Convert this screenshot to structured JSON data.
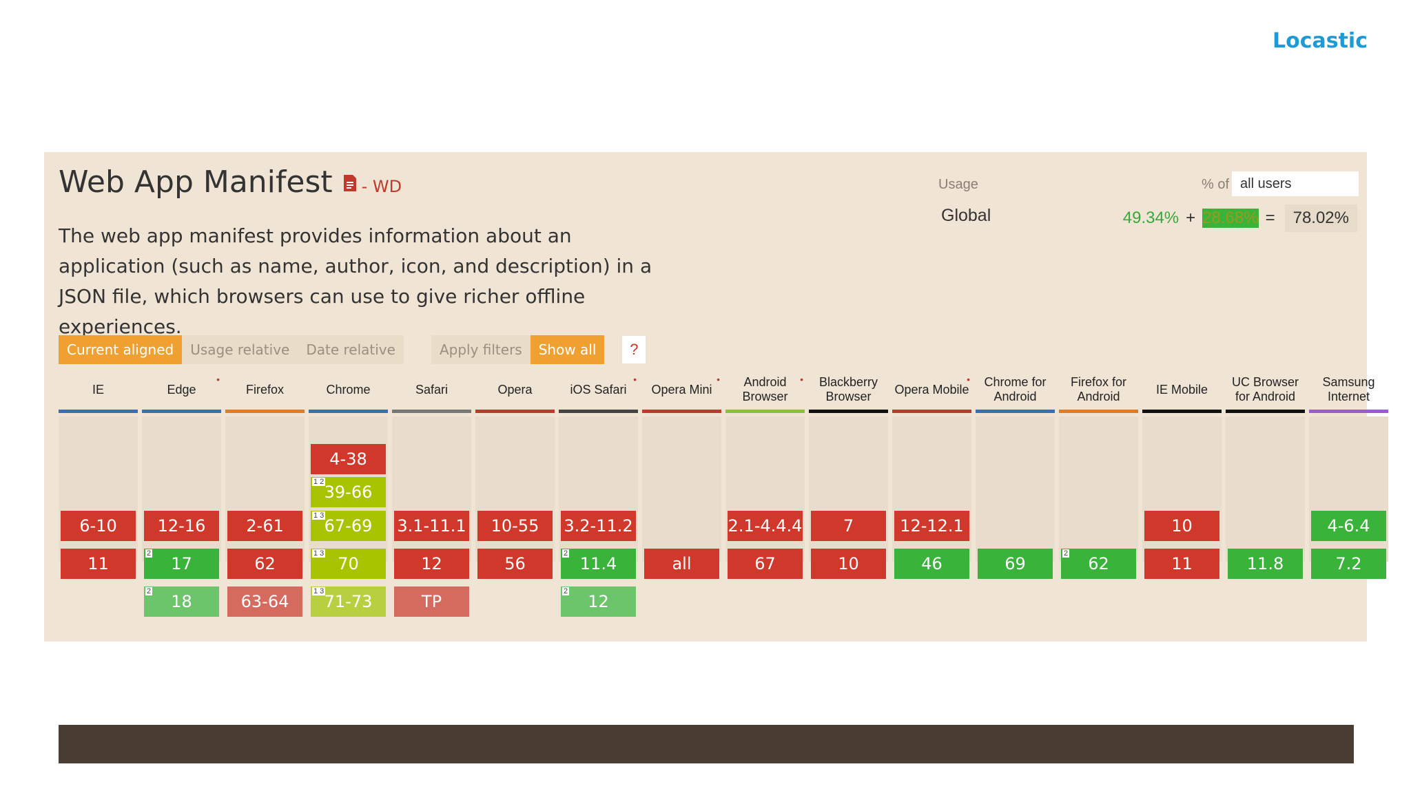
{
  "brand": "Locastic",
  "header": {
    "title": "Web App Manifest",
    "doc_icon": "document-icon",
    "status": "- WD",
    "description": "The web app manifest provides information about an application (such as name, author, icon, and description) in a JSON file, which browsers can use to give richer offline experiences."
  },
  "usage": {
    "label": "Usage",
    "pct_of_label": "% of",
    "select_value": "all users",
    "region": "Global",
    "supported": "49.34%",
    "plus": "+",
    "partial": "28.68%",
    "equals": "=",
    "total": "78.02%"
  },
  "filters": {
    "current_aligned": "Current aligned",
    "usage_relative": "Usage relative",
    "date_relative": "Date relative",
    "apply_filters": "Apply filters",
    "show_all": "Show all",
    "help": "?"
  },
  "colors": {
    "supported": "#39b339",
    "not_supported": "#d0382b",
    "partial": "#a8c400",
    "panel_bg": "#f0e5d5",
    "brand": "#1e9ad6"
  },
  "browsers": [
    {
      "name": "IE",
      "line_color": "#3d6db5",
      "star": false,
      "cells": [
        {
          "row": 2,
          "text": "6-10",
          "status": "n"
        },
        {
          "row": 3,
          "text": "11",
          "status": "n"
        }
      ]
    },
    {
      "name": "Edge",
      "line_color": "#3d6db5",
      "star": true,
      "cells": [
        {
          "row": 2,
          "text": "12-16",
          "status": "n"
        },
        {
          "row": 3,
          "text": "17",
          "status": "y",
          "note": "2"
        },
        {
          "row": 4,
          "text": "18",
          "status": "fy",
          "note": "2"
        }
      ]
    },
    {
      "name": "Firefox",
      "line_color": "#e07b24",
      "star": false,
      "cells": [
        {
          "row": 2,
          "text": "2-61",
          "status": "n"
        },
        {
          "row": 3,
          "text": "62",
          "status": "n"
        },
        {
          "row": 4,
          "text": "63-64",
          "status": "fn"
        }
      ]
    },
    {
      "name": "Chrome",
      "line_color": "#3d6db5",
      "star": false,
      "cells": [
        {
          "row": 0,
          "text": "4-38",
          "status": "n"
        },
        {
          "row": 1,
          "text": "39-66",
          "status": "a",
          "note": "1 2"
        },
        {
          "row": 2,
          "text": "67-69",
          "status": "a",
          "note": "1 3"
        },
        {
          "row": 3,
          "text": "70",
          "status": "a",
          "note": "1 3"
        },
        {
          "row": 4,
          "text": "71-73",
          "status": "fa",
          "note": "1 3"
        }
      ]
    },
    {
      "name": "Safari",
      "line_color": "#777777",
      "star": false,
      "cells": [
        {
          "row": 2,
          "text": "3.1-11.1",
          "status": "n"
        },
        {
          "row": 3,
          "text": "12",
          "status": "n"
        },
        {
          "row": 4,
          "text": "TP",
          "status": "fn"
        }
      ]
    },
    {
      "name": "Opera",
      "line_color": "#c0392b",
      "star": false,
      "cells": [
        {
          "row": 2,
          "text": "10-55",
          "status": "n"
        },
        {
          "row": 3,
          "text": "56",
          "status": "n"
        }
      ]
    },
    {
      "name": "iOS Safari",
      "line_color": "#444444",
      "star": true,
      "cells": [
        {
          "row": 2,
          "text": "3.2-11.2",
          "status": "n"
        },
        {
          "row": 3,
          "text": "11.4",
          "status": "y",
          "note": "2"
        },
        {
          "row": 4,
          "text": "12",
          "status": "fy",
          "note": "2"
        }
      ]
    },
    {
      "name": "Opera Mini",
      "line_color": "#c0392b",
      "star": true,
      "cells": [
        {
          "row": 3,
          "text": "all",
          "status": "n"
        }
      ]
    },
    {
      "name": "Android Browser",
      "line_color": "#8bbf3a",
      "star": true,
      "cells": [
        {
          "row": 2,
          "text": "2.1-4.4.4",
          "status": "n"
        },
        {
          "row": 3,
          "text": "67",
          "status": "n"
        }
      ]
    },
    {
      "name": "Blackberry Browser",
      "line_color": "#111111",
      "star": false,
      "cells": [
        {
          "row": 2,
          "text": "7",
          "status": "n"
        },
        {
          "row": 3,
          "text": "10",
          "status": "n"
        }
      ]
    },
    {
      "name": "Opera Mobile",
      "line_color": "#c0392b",
      "star": true,
      "cells": [
        {
          "row": 2,
          "text": "12-12.1",
          "status": "n"
        },
        {
          "row": 3,
          "text": "46",
          "status": "y"
        }
      ]
    },
    {
      "name": "Chrome for Android",
      "line_color": "#3d6db5",
      "star": false,
      "cells": [
        {
          "row": 3,
          "text": "69",
          "status": "y"
        }
      ]
    },
    {
      "name": "Firefox for Android",
      "line_color": "#e07b24",
      "star": false,
      "cells": [
        {
          "row": 3,
          "text": "62",
          "status": "y",
          "note": "2"
        }
      ]
    },
    {
      "name": "IE Mobile",
      "line_color": "#111111",
      "star": false,
      "cells": [
        {
          "row": 2,
          "text": "10",
          "status": "n"
        },
        {
          "row": 3,
          "text": "11",
          "status": "n"
        }
      ]
    },
    {
      "name": "UC Browser for Android",
      "line_color": "#111111",
      "star": false,
      "cells": [
        {
          "row": 3,
          "text": "11.8",
          "status": "y"
        }
      ]
    },
    {
      "name": "Samsung Internet",
      "line_color": "#9b59d6",
      "star": false,
      "cells": [
        {
          "row": 2,
          "text": "4-6.4",
          "status": "y"
        },
        {
          "row": 3,
          "text": "7.2",
          "status": "y"
        }
      ]
    }
  ]
}
